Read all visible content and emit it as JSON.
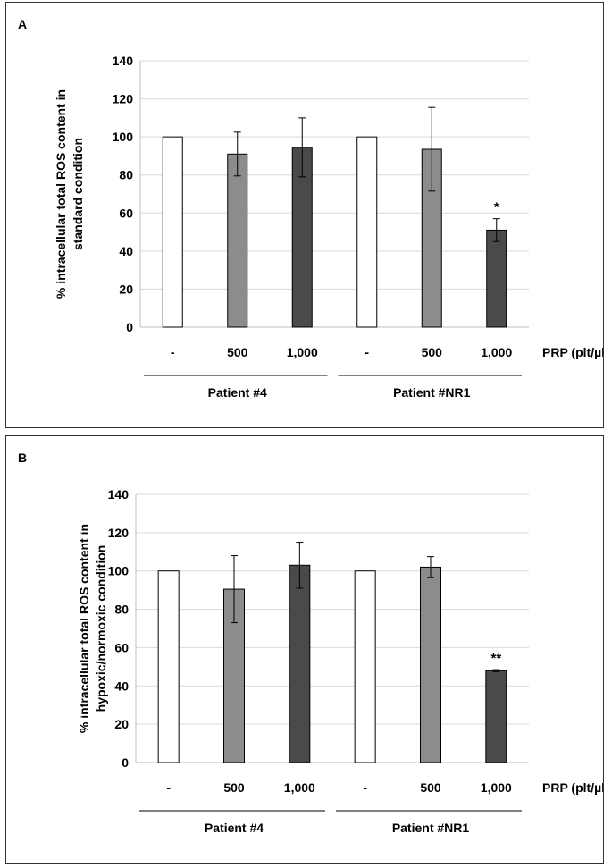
{
  "chart_data": [
    {
      "panel": "A",
      "type": "bar",
      "ylabel": [
        "% intracellular total ROS content in",
        "standard condition"
      ],
      "ylim": [
        0,
        140
      ],
      "yticks": [
        0,
        20,
        40,
        60,
        80,
        100,
        120,
        140
      ],
      "categories": [
        "-",
        "500",
        "1,000",
        "-",
        "500",
        "1,000"
      ],
      "xaxis_unit": "PRP (plt/µl)",
      "groups": [
        {
          "name": "Patient #4",
          "start": 0,
          "end": 2
        },
        {
          "name": "Patient #NR1",
          "start": 3,
          "end": 5
        }
      ],
      "values": [
        100,
        91,
        94.5,
        100,
        93.5,
        51
      ],
      "errors": [
        0,
        11.5,
        15.5,
        0,
        22,
        6
      ],
      "colors": [
        "#ffffff",
        "#8c8c8c",
        "#4a4a4a",
        "#ffffff",
        "#8c8c8c",
        "#4a4a4a"
      ],
      "significance": [
        "",
        "",
        "",
        "",
        "",
        "*"
      ],
      "grid": true
    },
    {
      "panel": "B",
      "type": "bar",
      "ylabel": [
        "% intracellular total ROS content in",
        "hypoxic/normoxic condition"
      ],
      "ylim": [
        0,
        140
      ],
      "yticks": [
        0,
        20,
        40,
        60,
        80,
        100,
        120,
        140
      ],
      "categories": [
        "-",
        "500",
        "1,000",
        "-",
        "500",
        "1,000"
      ],
      "xaxis_unit": "PRP (plt/µl)",
      "groups": [
        {
          "name": "Patient #4",
          "start": 0,
          "end": 2
        },
        {
          "name": "Patient #NR1",
          "start": 3,
          "end": 5
        }
      ],
      "values": [
        100,
        90.5,
        103,
        100,
        102,
        48
      ],
      "errors": [
        0,
        17.5,
        12,
        0,
        5.5,
        0.5
      ],
      "colors": [
        "#ffffff",
        "#8c8c8c",
        "#4a4a4a",
        "#ffffff",
        "#8c8c8c",
        "#4a4a4a"
      ],
      "significance": [
        "",
        "",
        "",
        "",
        "",
        "**"
      ],
      "grid": true
    }
  ]
}
